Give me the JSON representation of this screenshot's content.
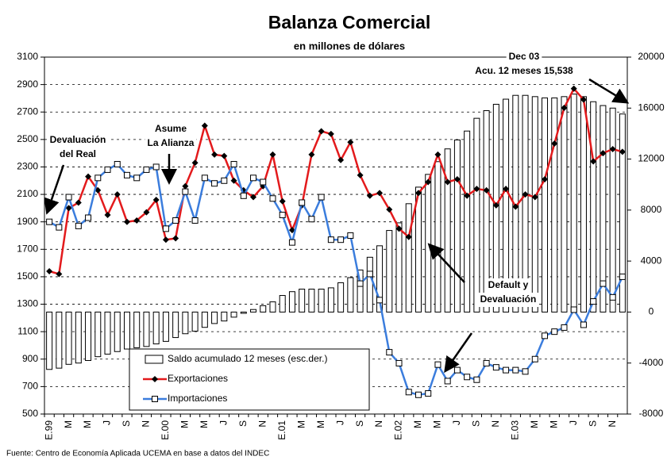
{
  "chart_data": {
    "type": "combo",
    "title": "Balanza Comercial",
    "subtitle": "en millones de dólares",
    "categories": [
      "E.99",
      null,
      "M",
      null,
      "M",
      null,
      "J",
      null,
      "S",
      null,
      "N",
      null,
      "E.00",
      null,
      "M",
      null,
      "M",
      null,
      "J",
      null,
      "S",
      null,
      "N",
      null,
      "E.01",
      null,
      "M",
      null,
      "M",
      null,
      "J",
      null,
      "S",
      null,
      "N",
      null,
      "E.02",
      null,
      "M",
      null,
      "M",
      null,
      "J",
      null,
      "S",
      null,
      "N",
      null,
      "E.03",
      null,
      "M",
      null,
      "M",
      null,
      "J",
      null,
      "S",
      null,
      "N",
      null
    ],
    "series": [
      {
        "name": "Saldo acumulado 12 meses (esc.der.)",
        "type": "bar",
        "axis": "y2",
        "color": "#ffffff",
        "values": [
          -4500,
          -4400,
          -4100,
          -4000,
          -3800,
          -3500,
          -3300,
          -3100,
          -2900,
          -2800,
          -2700,
          -2500,
          -2300,
          -2000,
          -1700,
          -1500,
          -1200,
          -900,
          -700,
          -400,
          -100,
          200,
          500,
          800,
          1300,
          1600,
          1800,
          1800,
          1800,
          1900,
          2300,
          2700,
          3300,
          4300,
          5200,
          6400,
          7000,
          8500,
          9800,
          10800,
          11800,
          12800,
          13500,
          14200,
          15200,
          15800,
          16300,
          16700,
          17000,
          17000,
          16900,
          16800,
          16800,
          16900,
          17100,
          16900,
          16500,
          16200,
          16000,
          15538
        ]
      },
      {
        "name": "Exportaciones",
        "type": "line",
        "color": "#e31a1c",
        "marker_color": "#000000",
        "marker": "diamond",
        "values": [
          1540,
          1520,
          2000,
          2040,
          2230,
          2130,
          1950,
          2100,
          1900,
          1910,
          1970,
          2060,
          1770,
          1780,
          2160,
          2330,
          2600,
          2390,
          2380,
          2200,
          2130,
          2080,
          2160,
          2390,
          2050,
          1840,
          2020,
          2390,
          2560,
          2540,
          2350,
          2480,
          2240,
          2090,
          2110,
          1990,
          1850,
          1790,
          2110,
          2190,
          2390,
          2190,
          2210,
          2090,
          2140,
          2130,
          2020,
          2140,
          2010,
          2100,
          2080,
          2210,
          2470,
          2730,
          2870,
          2790,
          2340,
          2400,
          2430,
          2410
        ]
      },
      {
        "name": "Importaciones",
        "type": "line",
        "color": "#3b7ddd",
        "marker_color": "#000000",
        "marker": "square",
        "values": [
          1900,
          1860,
          2080,
          1870,
          1930,
          2220,
          2280,
          2320,
          2240,
          2220,
          2280,
          2300,
          1850,
          1910,
          2120,
          1910,
          2220,
          2180,
          2200,
          2320,
          2090,
          2220,
          2190,
          2070,
          1950,
          1750,
          2040,
          1920,
          2080,
          1770,
          1770,
          1800,
          1450,
          1520,
          1330,
          950,
          870,
          660,
          640,
          650,
          860,
          740,
          820,
          770,
          750,
          870,
          840,
          820,
          820,
          810,
          900,
          1070,
          1100,
          1130,
          1260,
          1150,
          1320,
          1450,
          1350,
          1500
        ]
      }
    ],
    "ylim": [
      500,
      3100
    ],
    "yticks": [
      500,
      700,
      900,
      1100,
      1300,
      1500,
      1700,
      1900,
      2100,
      2300,
      2500,
      2700,
      2900,
      3100
    ],
    "y2lim": [
      -8000,
      20000
    ],
    "y2ticks": [
      -8000,
      -4000,
      0,
      4000,
      8000,
      12000,
      16000,
      20000
    ],
    "grid": true,
    "annotations": [
      [
        "Devaluación",
        "del Real"
      ],
      [
        "Asume",
        "La Alianza"
      ],
      [
        "Dec 03",
        "Acu. 12 meses 15,538"
      ],
      [
        "Default y",
        "Devaluación"
      ]
    ],
    "source": "Fuente: Centro de Economía Aplicada UCEMA en base a datos del INDEC"
  }
}
